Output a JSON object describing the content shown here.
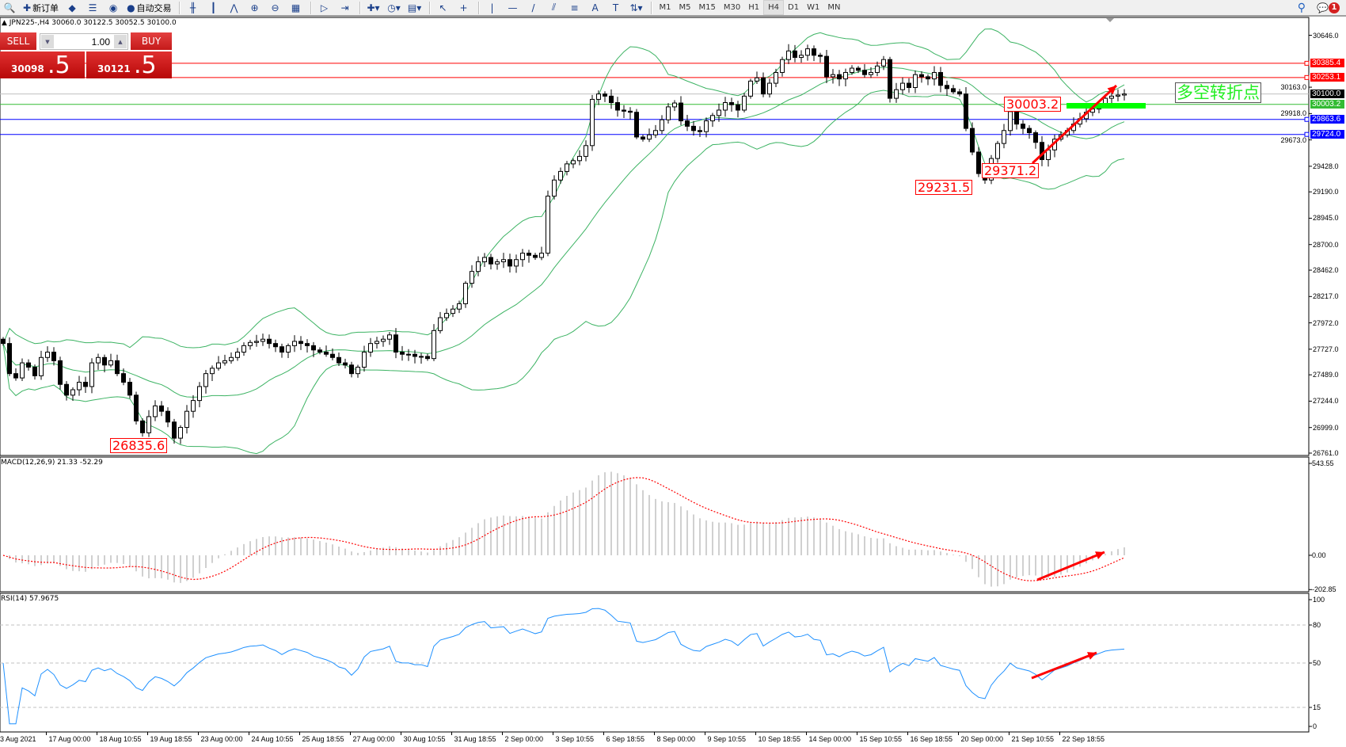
{
  "toolbar": {
    "items": [
      {
        "icon": "zoom-icon",
        "glyph": "🔍",
        "label": ""
      },
      {
        "icon": "new-order-icon",
        "glyph": "✚",
        "label": "新订单"
      },
      {
        "icon": "history-center-icon",
        "glyph": "◆",
        "label": ""
      },
      {
        "icon": "market-watch-icon",
        "glyph": "☰",
        "label": ""
      },
      {
        "icon": "signals-icon",
        "glyph": "◉",
        "label": ""
      },
      {
        "icon": "auto-trading-icon",
        "glyph": "●",
        "label": "自动交易"
      }
    ],
    "chart_tools": [
      {
        "icon": "bar-chart-icon",
        "glyph": "╫"
      },
      {
        "icon": "candlestick-icon",
        "glyph": "┃"
      },
      {
        "icon": "line-chart-icon",
        "glyph": "⋀"
      },
      {
        "icon": "zoom-in-icon",
        "glyph": "⊕"
      },
      {
        "icon": "zoom-out-icon",
        "glyph": "⊖"
      },
      {
        "icon": "tile-windows-icon",
        "glyph": "▦"
      },
      {
        "icon": "autoscroll-icon",
        "glyph": "▷"
      },
      {
        "icon": "chart-shift-icon",
        "glyph": "⇥"
      },
      {
        "icon": "indicators-icon",
        "glyph": "✚▾"
      },
      {
        "icon": "periods-icon",
        "glyph": "◷▾"
      },
      {
        "icon": "templates-icon",
        "glyph": "▤▾"
      },
      {
        "icon": "cursor-icon",
        "glyph": "↖"
      },
      {
        "icon": "crosshair-icon",
        "glyph": "+"
      },
      {
        "icon": "vertical-line-icon",
        "glyph": "|"
      },
      {
        "icon": "horizontal-line-icon",
        "glyph": "—"
      },
      {
        "icon": "trendline-icon",
        "glyph": "/"
      },
      {
        "icon": "equidistant-channel-icon",
        "glyph": "⫽"
      },
      {
        "icon": "fibonacci-icon",
        "glyph": "≡"
      },
      {
        "icon": "text-icon",
        "glyph": "A"
      },
      {
        "icon": "text-label-icon",
        "glyph": "T"
      },
      {
        "icon": "arrows-icon",
        "glyph": "⇅▾"
      }
    ],
    "timeframes": [
      "M1",
      "M5",
      "M15",
      "M30",
      "H1",
      "H4",
      "D1",
      "W1",
      "MN"
    ],
    "active_timeframe": "H4",
    "search_glyph": "⚲",
    "notifications_count": "1"
  },
  "chart_header": "▲ JPN225-,H4  30060.0 30122.5 30052.5 30100.0",
  "trade_panel": {
    "sell_label": "SELL",
    "buy_label": "BUY",
    "lot": "1.00",
    "sell_price_small": "30098",
    "sell_price_big": ".5",
    "buy_price_small": "30121",
    "buy_price_big": ".5"
  },
  "annotations": {
    "low_1": "26835.6",
    "low_2": "29231.5",
    "low_3": "29371.2",
    "high_1": "30003.2",
    "turning_point": "多空转折点"
  },
  "colors": {
    "candle": "#000000",
    "bollinger": "#3cb363",
    "resistance": "#ff0000",
    "support": "#0000ff",
    "pivot": "#33cc33",
    "bid": "#c0c0c0",
    "macd_hist": "#c0c0c0",
    "macd_signal": "#ff0000",
    "rsi": "#1e90ff",
    "arrow": "#ff0000"
  },
  "price_lines": [
    {
      "value": 30385.4,
      "label": "30385.4",
      "color": "#ff0000",
      "tag_bg": "#ff0000"
    },
    {
      "value": 30253.1,
      "label": "30253.1",
      "color": "#ff0000",
      "tag_bg": "#ff0000"
    },
    {
      "value": 30100.0,
      "label": "30100.0",
      "color": "#c0c0c0",
      "tag_bg": "#000000"
    },
    {
      "value": 30003.2,
      "label": "30003.2",
      "color": "#33bb33",
      "tag_bg": "#33bb33"
    },
    {
      "value": 29863.6,
      "label": "29863.6",
      "color": "#0000ff",
      "tag_bg": "#0000ff"
    },
    {
      "value": 29724.0,
      "label": "29724.0",
      "color": "#0000ff",
      "tag_bg": "#0000ff"
    }
  ],
  "price_axis": [
    "30646.0",
    "30163.0",
    "29918.0",
    "29673.0",
    "29428.0",
    "29190.0",
    "28945.0",
    "28700.0",
    "28462.0",
    "28217.0",
    "27972.0",
    "27727.0",
    "27489.0",
    "27244.0",
    "26999.0",
    "26761.0"
  ],
  "macd": {
    "title": "MACD(12,26,9) 21.33 -52.29",
    "axis": [
      "543.55",
      "0.00",
      "-202.85"
    ]
  },
  "rsi": {
    "title": "RSI(14) 57.9675",
    "axis": [
      "100",
      "80",
      "50",
      "15",
      "0"
    ]
  },
  "time_axis": [
    "3 Aug 2021",
    "17 Aug 00:00",
    "18 Aug 10:55",
    "19 Aug 18:55",
    "23 Aug 00:00",
    "24 Aug 10:55",
    "25 Aug 18:55",
    "27 Aug 00:00",
    "30 Aug 10:55",
    "31 Aug 18:55",
    "2 Sep 00:00",
    "3 Sep 10:55",
    "6 Sep 18:55",
    "8 Sep 00:00",
    "9 Sep 10:55",
    "10 Sep 18:55",
    "14 Sep 00:00",
    "15 Sep 10:55",
    "16 Sep 18:55",
    "20 Sep 00:00",
    "21 Sep 10:55",
    "22 Sep 18:55"
  ],
  "chart_data": {
    "type": "candlestick",
    "symbol": "JPN225-",
    "timeframe": "H4",
    "ylim": [
      26761.0,
      30646.0
    ],
    "closes": [
      27780,
      27500,
      27460,
      27600,
      27560,
      27480,
      27650,
      27700,
      27620,
      27400,
      27300,
      27350,
      27420,
      27380,
      27600,
      27650,
      27580,
      27620,
      27500,
      27420,
      27300,
      27060,
      26950,
      27100,
      27200,
      27150,
      27050,
      26900,
      27000,
      27150,
      27250,
      27380,
      27500,
      27550,
      27600,
      27620,
      27650,
      27700,
      27760,
      27790,
      27800,
      27820,
      27780,
      27750,
      27700,
      27760,
      27800,
      27780,
      27760,
      27720,
      27700,
      27680,
      27650,
      27600,
      27580,
      27500,
      27560,
      27700,
      27780,
      27800,
      27820,
      27860,
      27700,
      27680,
      27680,
      27660,
      27660,
      27640,
      27900,
      28020,
      28060,
      28100,
      28150,
      28340,
      28450,
      28540,
      28580,
      28520,
      28540,
      28560,
      28500,
      28560,
      28620,
      28600,
      28580,
      28620,
      29150,
      29300,
      29380,
      29450,
      29480,
      29520,
      29620,
      30050,
      30100,
      30080,
      30020,
      29950,
      29940,
      29930,
      29700,
      29680,
      29720,
      29760,
      29860,
      29980,
      30016,
      29850,
      29800,
      29760,
      29750,
      29850,
      29900,
      29950,
      30020,
      30000,
      29950,
      30080,
      30220,
      30250,
      30100,
      30200,
      30300,
      30420,
      30500,
      30440,
      30460,
      30520,
      30460,
      30450,
      30260,
      30280,
      30240,
      30300,
      30340,
      30320,
      30280,
      30300,
      30360,
      30420,
      30060,
      30140,
      30200,
      30160,
      30280,
      30260,
      30240,
      30300,
      30180,
      30150,
      30120,
      30100,
      29780,
      29560,
      29360,
      29300,
      29500,
      29640,
      29760,
      29936,
      29820,
      29780,
      29740,
      29650,
      29490,
      29580,
      29680,
      29720,
      29760,
      29820,
      29870,
      29930,
      29960,
      30010,
      30060,
      30080,
      30090,
      30100
    ],
    "indicators": [
      "Bollinger Bands",
      "MACD(12,26,9)",
      "RSI(14)"
    ],
    "rsi_levels": [
      80,
      50,
      15
    ]
  }
}
